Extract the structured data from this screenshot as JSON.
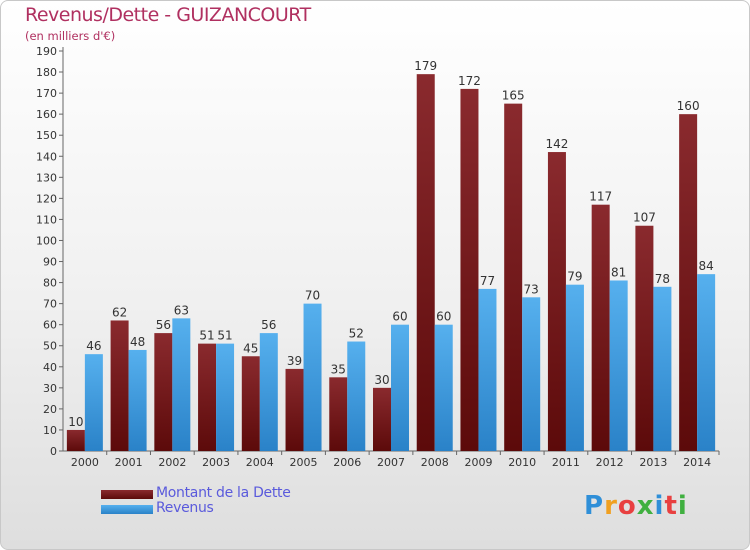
{
  "title": "Revenus/Dette - GUIZANCOURT",
  "subtitle": "(en milliers d'€)",
  "logo": {
    "text": "Proxiti",
    "colors": [
      "#2f8fd8",
      "#f0a020",
      "#e84040",
      "#40b040",
      "#2f8fd8",
      "#e84040",
      "#40b040"
    ]
  },
  "chart_data": {
    "type": "bar",
    "categories": [
      "2000",
      "2001",
      "2002",
      "2003",
      "2004",
      "2005",
      "2006",
      "2007",
      "2008",
      "2009",
      "2010",
      "2011",
      "2012",
      "2013",
      "2014"
    ],
    "series": [
      {
        "name": "Montant de la Dette",
        "color": "#7a1a1a",
        "values": [
          10,
          62,
          56,
          51,
          45,
          39,
          35,
          30,
          179,
          172,
          165,
          142,
          117,
          107,
          160
        ]
      },
      {
        "name": "Revenus",
        "color": "#3a9ce0",
        "values": [
          46,
          48,
          63,
          51,
          56,
          70,
          52,
          60,
          60,
          77,
          73,
          79,
          81,
          78,
          84
        ]
      }
    ],
    "ylim": [
      0,
      190
    ],
    "yticks": [
      0,
      10,
      20,
      30,
      40,
      50,
      60,
      70,
      80,
      90,
      100,
      110,
      120,
      130,
      140,
      150,
      160,
      170,
      180,
      190
    ],
    "grid": false,
    "legend": "bottom-left"
  }
}
